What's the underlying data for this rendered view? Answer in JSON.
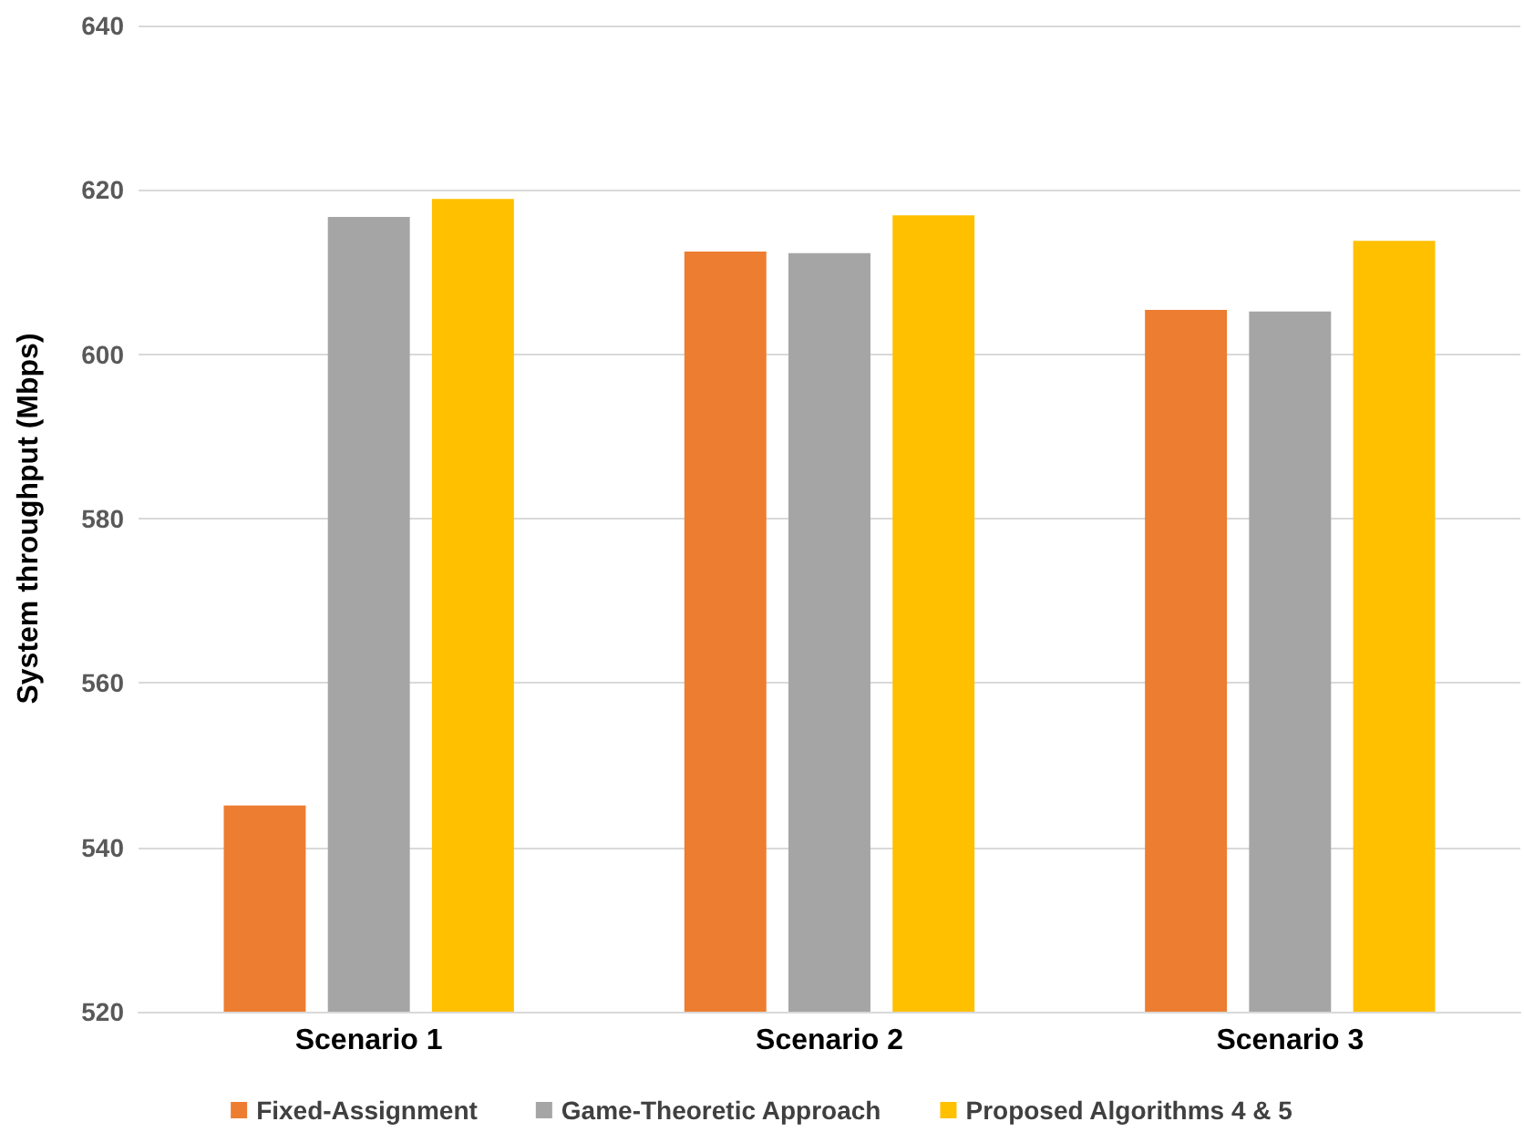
{
  "chart_data": {
    "type": "bar",
    "ylabel": "System throughput (Mbps)",
    "categories": [
      "Scenario 1",
      "Scenario 2",
      "Scenario 3"
    ],
    "series": [
      {
        "name": "Fixed-Assignment",
        "color": "#ed7d31",
        "values": [
          545.1,
          612.5,
          605.4
        ]
      },
      {
        "name": "Game-Theoretic Approach",
        "color": "#a5a5a5",
        "values": [
          616.7,
          612.3,
          605.2
        ]
      },
      {
        "name": "Proposed Algorithms 4 & 5",
        "color": "#ffc000",
        "values": [
          618.9,
          616.9,
          613.8
        ]
      }
    ],
    "ylim": [
      520,
      640
    ],
    "yticks": [
      520,
      540,
      560,
      580,
      600,
      620,
      640
    ],
    "grid": "y",
    "legend": "bottom"
  }
}
